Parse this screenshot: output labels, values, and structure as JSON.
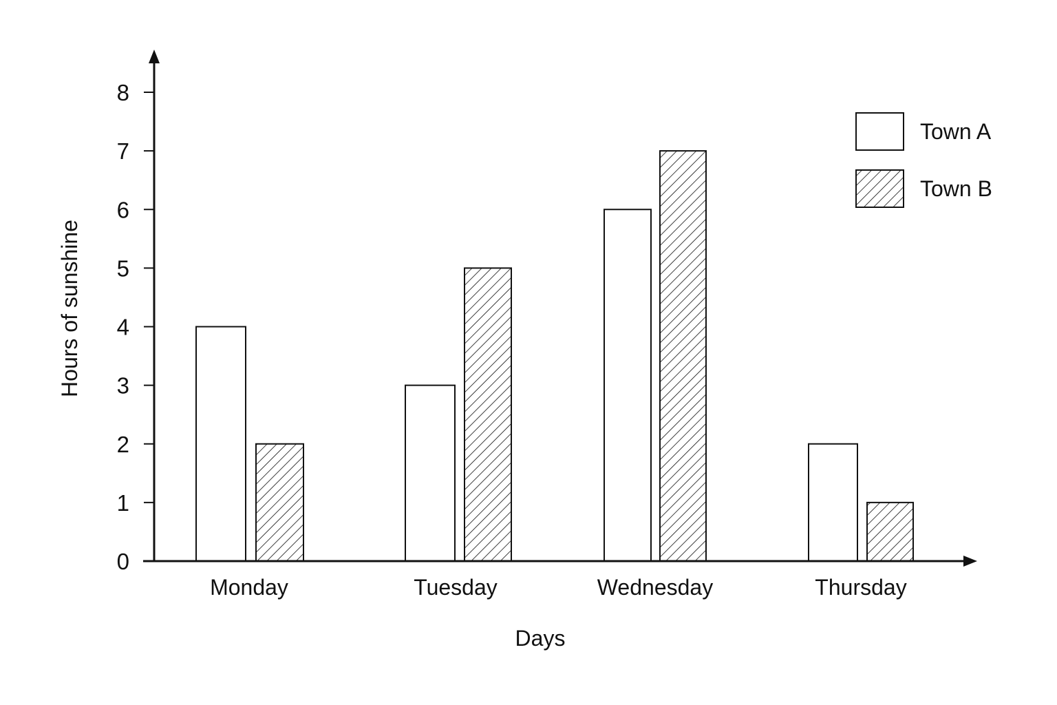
{
  "chart_data": {
    "type": "bar",
    "categories": [
      "Monday",
      "Tuesday",
      "Wednesday",
      "Thursday"
    ],
    "series": [
      {
        "name": "Town A",
        "values": [
          4,
          3,
          6,
          2
        ],
        "fill": "solid-white"
      },
      {
        "name": "Town B",
        "values": [
          2,
          5,
          7,
          1
        ],
        "fill": "diagonal-hatch"
      }
    ],
    "xlabel": "Days",
    "ylabel": "Hours of sunshine",
    "ylim": [
      0,
      8
    ],
    "yticks": [
      0,
      1,
      2,
      3,
      4,
      5,
      6,
      7,
      8
    ],
    "grid": false,
    "legend": "top-right",
    "colors": {
      "stroke": "#111111",
      "background": "#ffffff"
    }
  }
}
